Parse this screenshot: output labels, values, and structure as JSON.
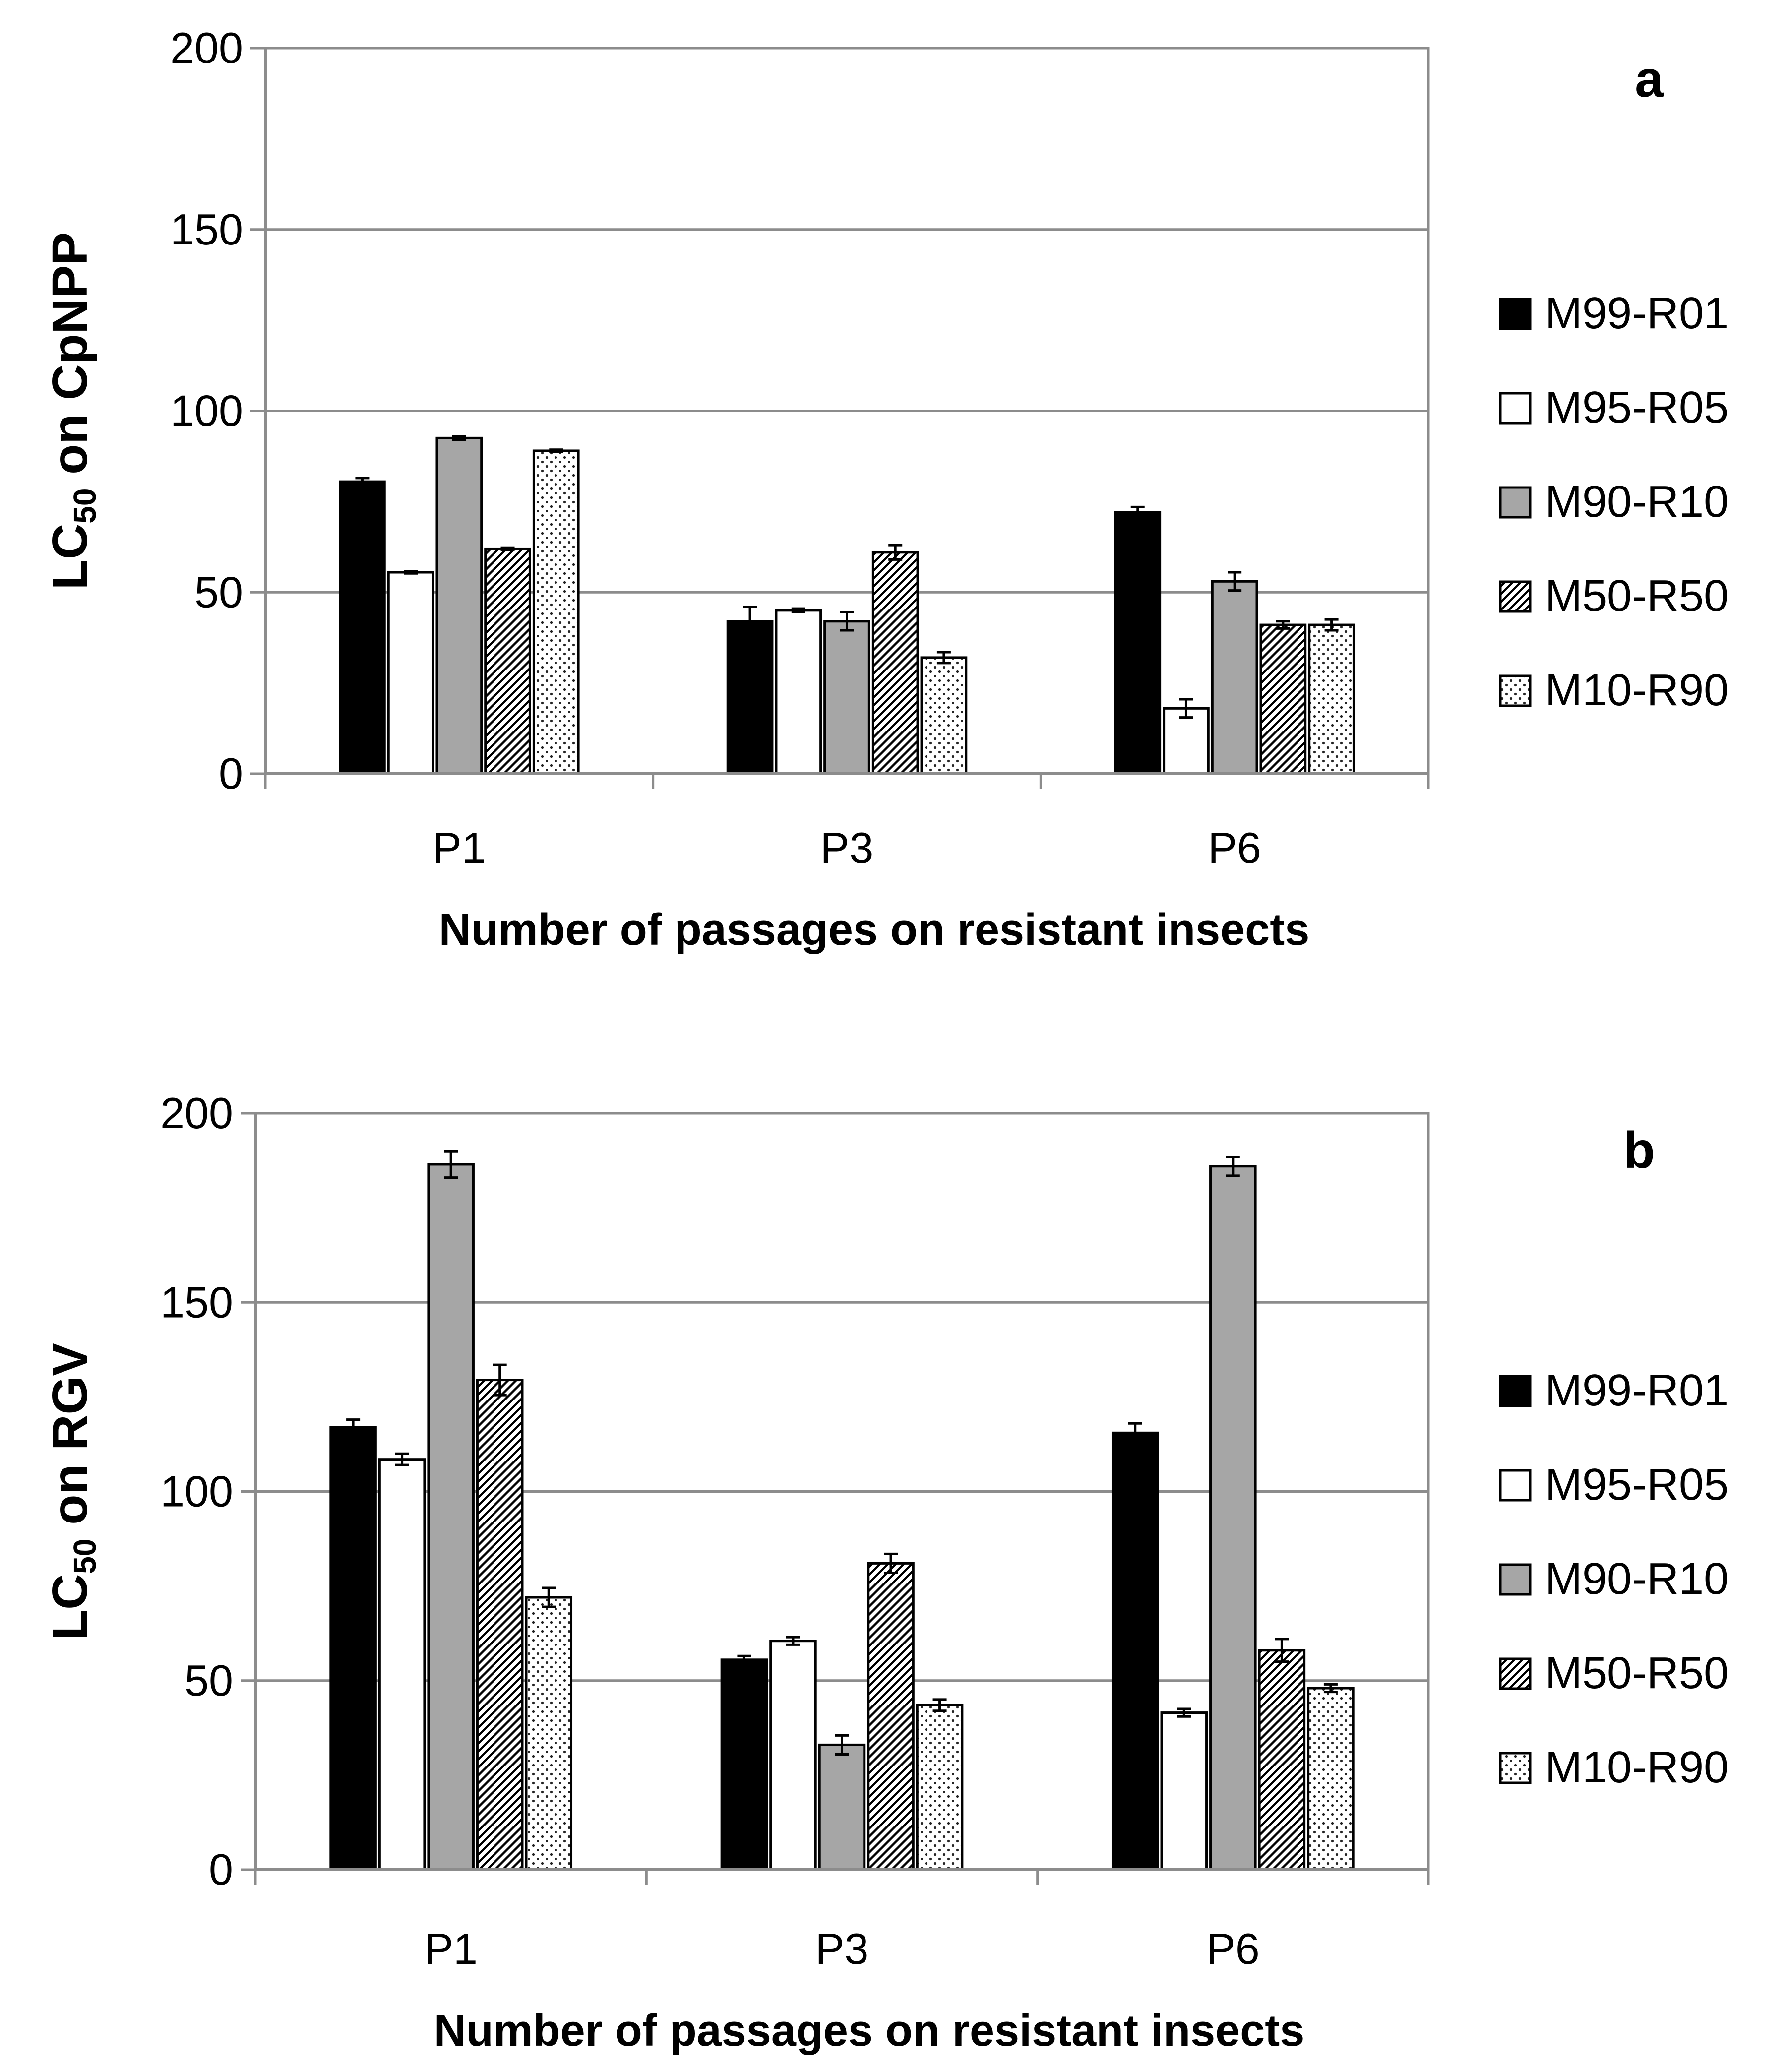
{
  "colors": {
    "black": "#000000",
    "white": "#ffffff",
    "gray": "#a6a6a6",
    "grid": "#8c8c8c"
  },
  "series_meta": [
    {
      "name": "M99-R01",
      "fill": "black"
    },
    {
      "name": "M95-R05",
      "fill": "white"
    },
    {
      "name": "M90-R10",
      "fill": "gray"
    },
    {
      "name": "M50-R50",
      "fill": "diagonal-hatch"
    },
    {
      "name": "M10-R90",
      "fill": "dots"
    }
  ],
  "chart_data": [
    {
      "panel": "a",
      "type": "bar",
      "title": "",
      "categories": [
        "P1",
        "P3",
        "P6"
      ],
      "xlabel": "Number of passages on resistant insects",
      "ylabel_main": "LC",
      "ylabel_sub": "50",
      "ylabel_rest": " on CpNPP",
      "ylim": [
        0,
        200
      ],
      "yticks": [
        0,
        50,
        100,
        150,
        200
      ],
      "legend_position": "right",
      "series": [
        {
          "name": "M99-R01",
          "values": [
            80.5,
            42,
            72
          ],
          "errors": [
            1,
            4,
            1.5
          ]
        },
        {
          "name": "M95-R05",
          "values": [
            55.5,
            45,
            18
          ],
          "errors": [
            0.3,
            0.5,
            2.5
          ]
        },
        {
          "name": "M90-R10",
          "values": [
            92.5,
            42,
            53
          ],
          "errors": [
            0.5,
            2.5,
            2.5
          ]
        },
        {
          "name": "M50-R50",
          "values": [
            62,
            61,
            41
          ],
          "errors": [
            0.3,
            2,
            1
          ]
        },
        {
          "name": "M10-R90",
          "values": [
            89,
            32,
            41
          ],
          "errors": [
            0.3,
            1.5,
            1.5
          ]
        }
      ]
    },
    {
      "panel": "b",
      "type": "bar",
      "title": "",
      "categories": [
        "P1",
        "P3",
        "P6"
      ],
      "xlabel": "Number of passages on resistant insects",
      "ylabel_main": "LC",
      "ylabel_sub": "50",
      "ylabel_rest": " on RGV",
      "ylim": [
        0,
        200
      ],
      "yticks": [
        0,
        50,
        100,
        150,
        200
      ],
      "legend_position": "right",
      "series": [
        {
          "name": "M99-R01",
          "values": [
            117,
            55.5,
            115.5
          ],
          "errors": [
            2,
            1,
            2.5
          ]
        },
        {
          "name": "M95-R05",
          "values": [
            108.5,
            60.5,
            41.5
          ],
          "errors": [
            1.5,
            1,
            1
          ]
        },
        {
          "name": "M90-R10",
          "values": [
            186.5,
            33,
            186
          ],
          "errors": [
            3.5,
            2.5,
            2.5
          ]
        },
        {
          "name": "M50-R50",
          "values": [
            129.5,
            81,
            58
          ],
          "errors": [
            4,
            2.5,
            3
          ]
        },
        {
          "name": "M10-R90",
          "values": [
            72,
            43.5,
            48
          ],
          "errors": [
            2.5,
            1.5,
            1
          ]
        }
      ]
    }
  ]
}
